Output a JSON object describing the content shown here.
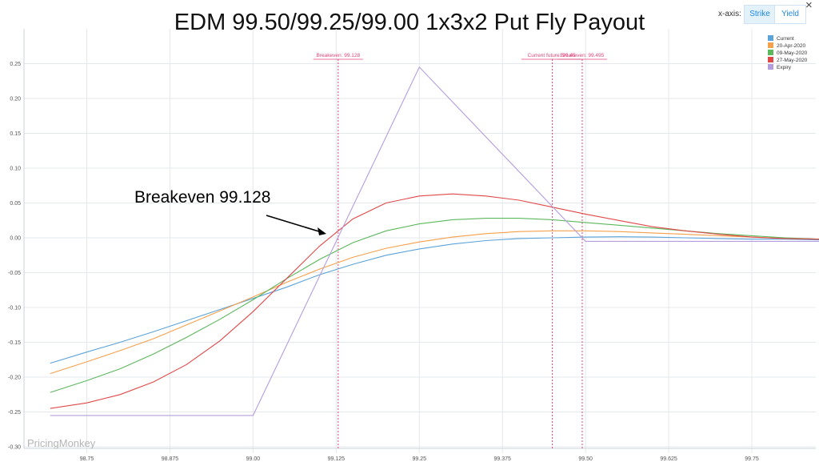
{
  "header": {
    "title": "EDM 99.50/99.25/99.00 1x3x2 Put Fly Payout",
    "xaxis_label": "x-axis:",
    "buttons": [
      "Strike",
      "Yield"
    ],
    "close_glyph": "×"
  },
  "watermark": "PricingMonkey",
  "annotation": {
    "text": "Breakeven 99.128"
  },
  "chart_data": {
    "type": "line",
    "title": "EDM 99.50/99.25/99.00 1x3x2 Put Fly Payout",
    "xlabel": "",
    "ylabel": "",
    "xlim": [
      98.695,
      99.96
    ],
    "ylim": [
      -0.3,
      0.3
    ],
    "x_ticks": [
      "98.75",
      "98.875",
      "99.00",
      "99.125",
      "99.25",
      "99.375",
      "99.50",
      "99.625",
      "99.75"
    ],
    "y_ticks": [
      "0.25",
      "0.20",
      "0.15",
      "0.10",
      "0.05",
      "0.00",
      "-0.05",
      "-0.10",
      "-0.15",
      "-0.20",
      "-0.25",
      "-0.30"
    ],
    "grid": true,
    "legend_position": "top-right",
    "colors": {
      "Current": "#5ba3d9",
      "20-Apr-2020": "#f5a04b",
      "09-May-2020": "#5cb85c",
      "27-May-2020": "#e04848",
      "Expiry": "#b49ddc",
      "marker": "#e0457b"
    },
    "series": [
      {
        "name": "Current",
        "x": [
          98.695,
          98.75,
          98.8,
          98.85,
          98.9,
          98.95,
          99.0,
          99.05,
          99.1,
          99.15,
          99.2,
          99.25,
          99.3,
          99.35,
          99.4,
          99.45,
          99.5,
          99.55,
          99.6,
          99.65,
          99.7,
          99.75,
          99.8,
          99.85,
          99.9,
          99.96
        ],
        "y": [
          -0.18,
          -0.164,
          -0.15,
          -0.135,
          -0.119,
          -0.103,
          -0.087,
          -0.071,
          -0.053,
          -0.038,
          -0.025,
          -0.016,
          -0.009,
          -0.004,
          -0.001,
          0.0,
          0.001,
          0.0015,
          0.001,
          0.0,
          -0.001,
          -0.002,
          -0.002,
          -0.003,
          -0.003,
          -0.004
        ]
      },
      {
        "name": "20-Apr-2020",
        "x": [
          98.695,
          98.75,
          98.8,
          98.85,
          98.9,
          98.95,
          99.0,
          99.05,
          99.1,
          99.15,
          99.2,
          99.25,
          99.3,
          99.35,
          99.4,
          99.45,
          99.5,
          99.55,
          99.6,
          99.65,
          99.7,
          99.75,
          99.8,
          99.85,
          99.9,
          99.96
        ],
        "y": [
          -0.195,
          -0.178,
          -0.162,
          -0.145,
          -0.125,
          -0.105,
          -0.085,
          -0.064,
          -0.045,
          -0.028,
          -0.015,
          -0.006,
          0.001,
          0.006,
          0.009,
          0.01,
          0.01,
          0.009,
          0.007,
          0.005,
          0.003,
          0.001,
          -0.001,
          -0.002,
          -0.003,
          -0.004
        ]
      },
      {
        "name": "09-May-2020",
        "x": [
          98.695,
          98.75,
          98.8,
          98.85,
          98.9,
          98.95,
          99.0,
          99.05,
          99.1,
          99.15,
          99.2,
          99.25,
          99.3,
          99.35,
          99.4,
          99.45,
          99.5,
          99.55,
          99.6,
          99.65,
          99.7,
          99.75,
          99.8,
          99.85,
          99.9,
          99.96
        ],
        "y": [
          -0.222,
          -0.205,
          -0.188,
          -0.167,
          -0.143,
          -0.117,
          -0.089,
          -0.059,
          -0.031,
          -0.007,
          0.01,
          0.02,
          0.026,
          0.028,
          0.028,
          0.026,
          0.022,
          0.018,
          0.014,
          0.01,
          0.006,
          0.003,
          0.0,
          -0.002,
          -0.003,
          -0.004
        ]
      },
      {
        "name": "27-May-2020",
        "x": [
          98.695,
          98.75,
          98.8,
          98.85,
          98.9,
          98.95,
          99.0,
          99.05,
          99.1,
          99.15,
          99.2,
          99.25,
          99.3,
          99.35,
          99.4,
          99.45,
          99.5,
          99.55,
          99.6,
          99.65,
          99.7,
          99.75,
          99.8,
          99.85,
          99.9,
          99.96
        ],
        "y": [
          -0.245,
          -0.237,
          -0.225,
          -0.207,
          -0.182,
          -0.148,
          -0.106,
          -0.059,
          -0.012,
          0.027,
          0.05,
          0.06,
          0.063,
          0.06,
          0.054,
          0.044,
          0.034,
          0.025,
          0.016,
          0.01,
          0.005,
          0.001,
          -0.001,
          -0.002,
          -0.003,
          -0.004
        ]
      },
      {
        "name": "Expiry",
        "x": [
          98.695,
          99.0,
          99.25,
          99.5,
          99.96
        ],
        "y": [
          -0.255,
          -0.255,
          0.245,
          -0.005,
          -0.005
        ]
      }
    ],
    "markers": [
      {
        "label": "Breakeven: 99.128",
        "x": 99.128
      },
      {
        "label": "Current future: 99.45",
        "x": 99.45
      },
      {
        "label": "Breakeven: 99.495",
        "x": 99.495
      }
    ]
  }
}
